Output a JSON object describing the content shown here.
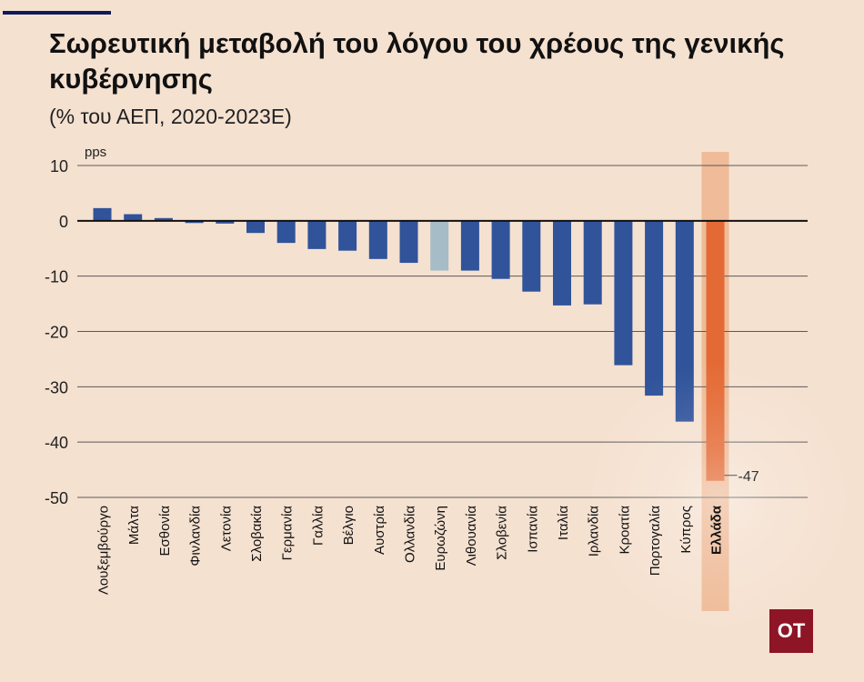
{
  "title": "Σωρευτική μεταβολή του λόγου του χρέους της γενικής κυβέρνησης",
  "subtitle": "(% του ΑΕΠ, 2020-2023Ε)",
  "logo_text": "OT",
  "colors": {
    "background": "#f5e1d0",
    "bar": "#30539a",
    "eurozone": "#a6bcc6",
    "highlight": "#e46a35",
    "highlight_band": "#edb48e",
    "logo": "#8e1526"
  },
  "chart_data": {
    "type": "bar",
    "unit_label": "pps",
    "categories": [
      "Λουξεμβούργο",
      "Μάλτα",
      "Εσθονία",
      "Φινλανδία",
      "Λετονία",
      "Σλοβακία",
      "Γερμανία",
      "Γαλλία",
      "Βέλγιο",
      "Αυστρία",
      "Ολλανδία",
      "Ευρωζώνη",
      "Λιθουανία",
      "Σλοβενία",
      "Ισπανία",
      "Ιταλία",
      "Ιρλανδία",
      "Κροατία",
      "Πορτογαλία",
      "Κύπρος",
      "Ελλάδα"
    ],
    "values": [
      2.3,
      1.2,
      0.5,
      -0.4,
      -0.5,
      -2.2,
      -4.0,
      -5.1,
      -5.4,
      -6.9,
      -7.6,
      -9.0,
      -9.0,
      -10.5,
      -12.8,
      -15.3,
      -15.1,
      -26.1,
      -31.6,
      -36.3,
      -47
    ],
    "highlight_category": "Ελλάδα",
    "eurozone_category": "Ευρωζώνη",
    "value_labels": [
      {
        "category": "Ελλάδα",
        "text": "-47"
      }
    ],
    "yticks": [
      10,
      0,
      -10,
      -20,
      -30,
      -40,
      -50
    ],
    "ylim": [
      -50,
      10
    ],
    "grid": true
  }
}
